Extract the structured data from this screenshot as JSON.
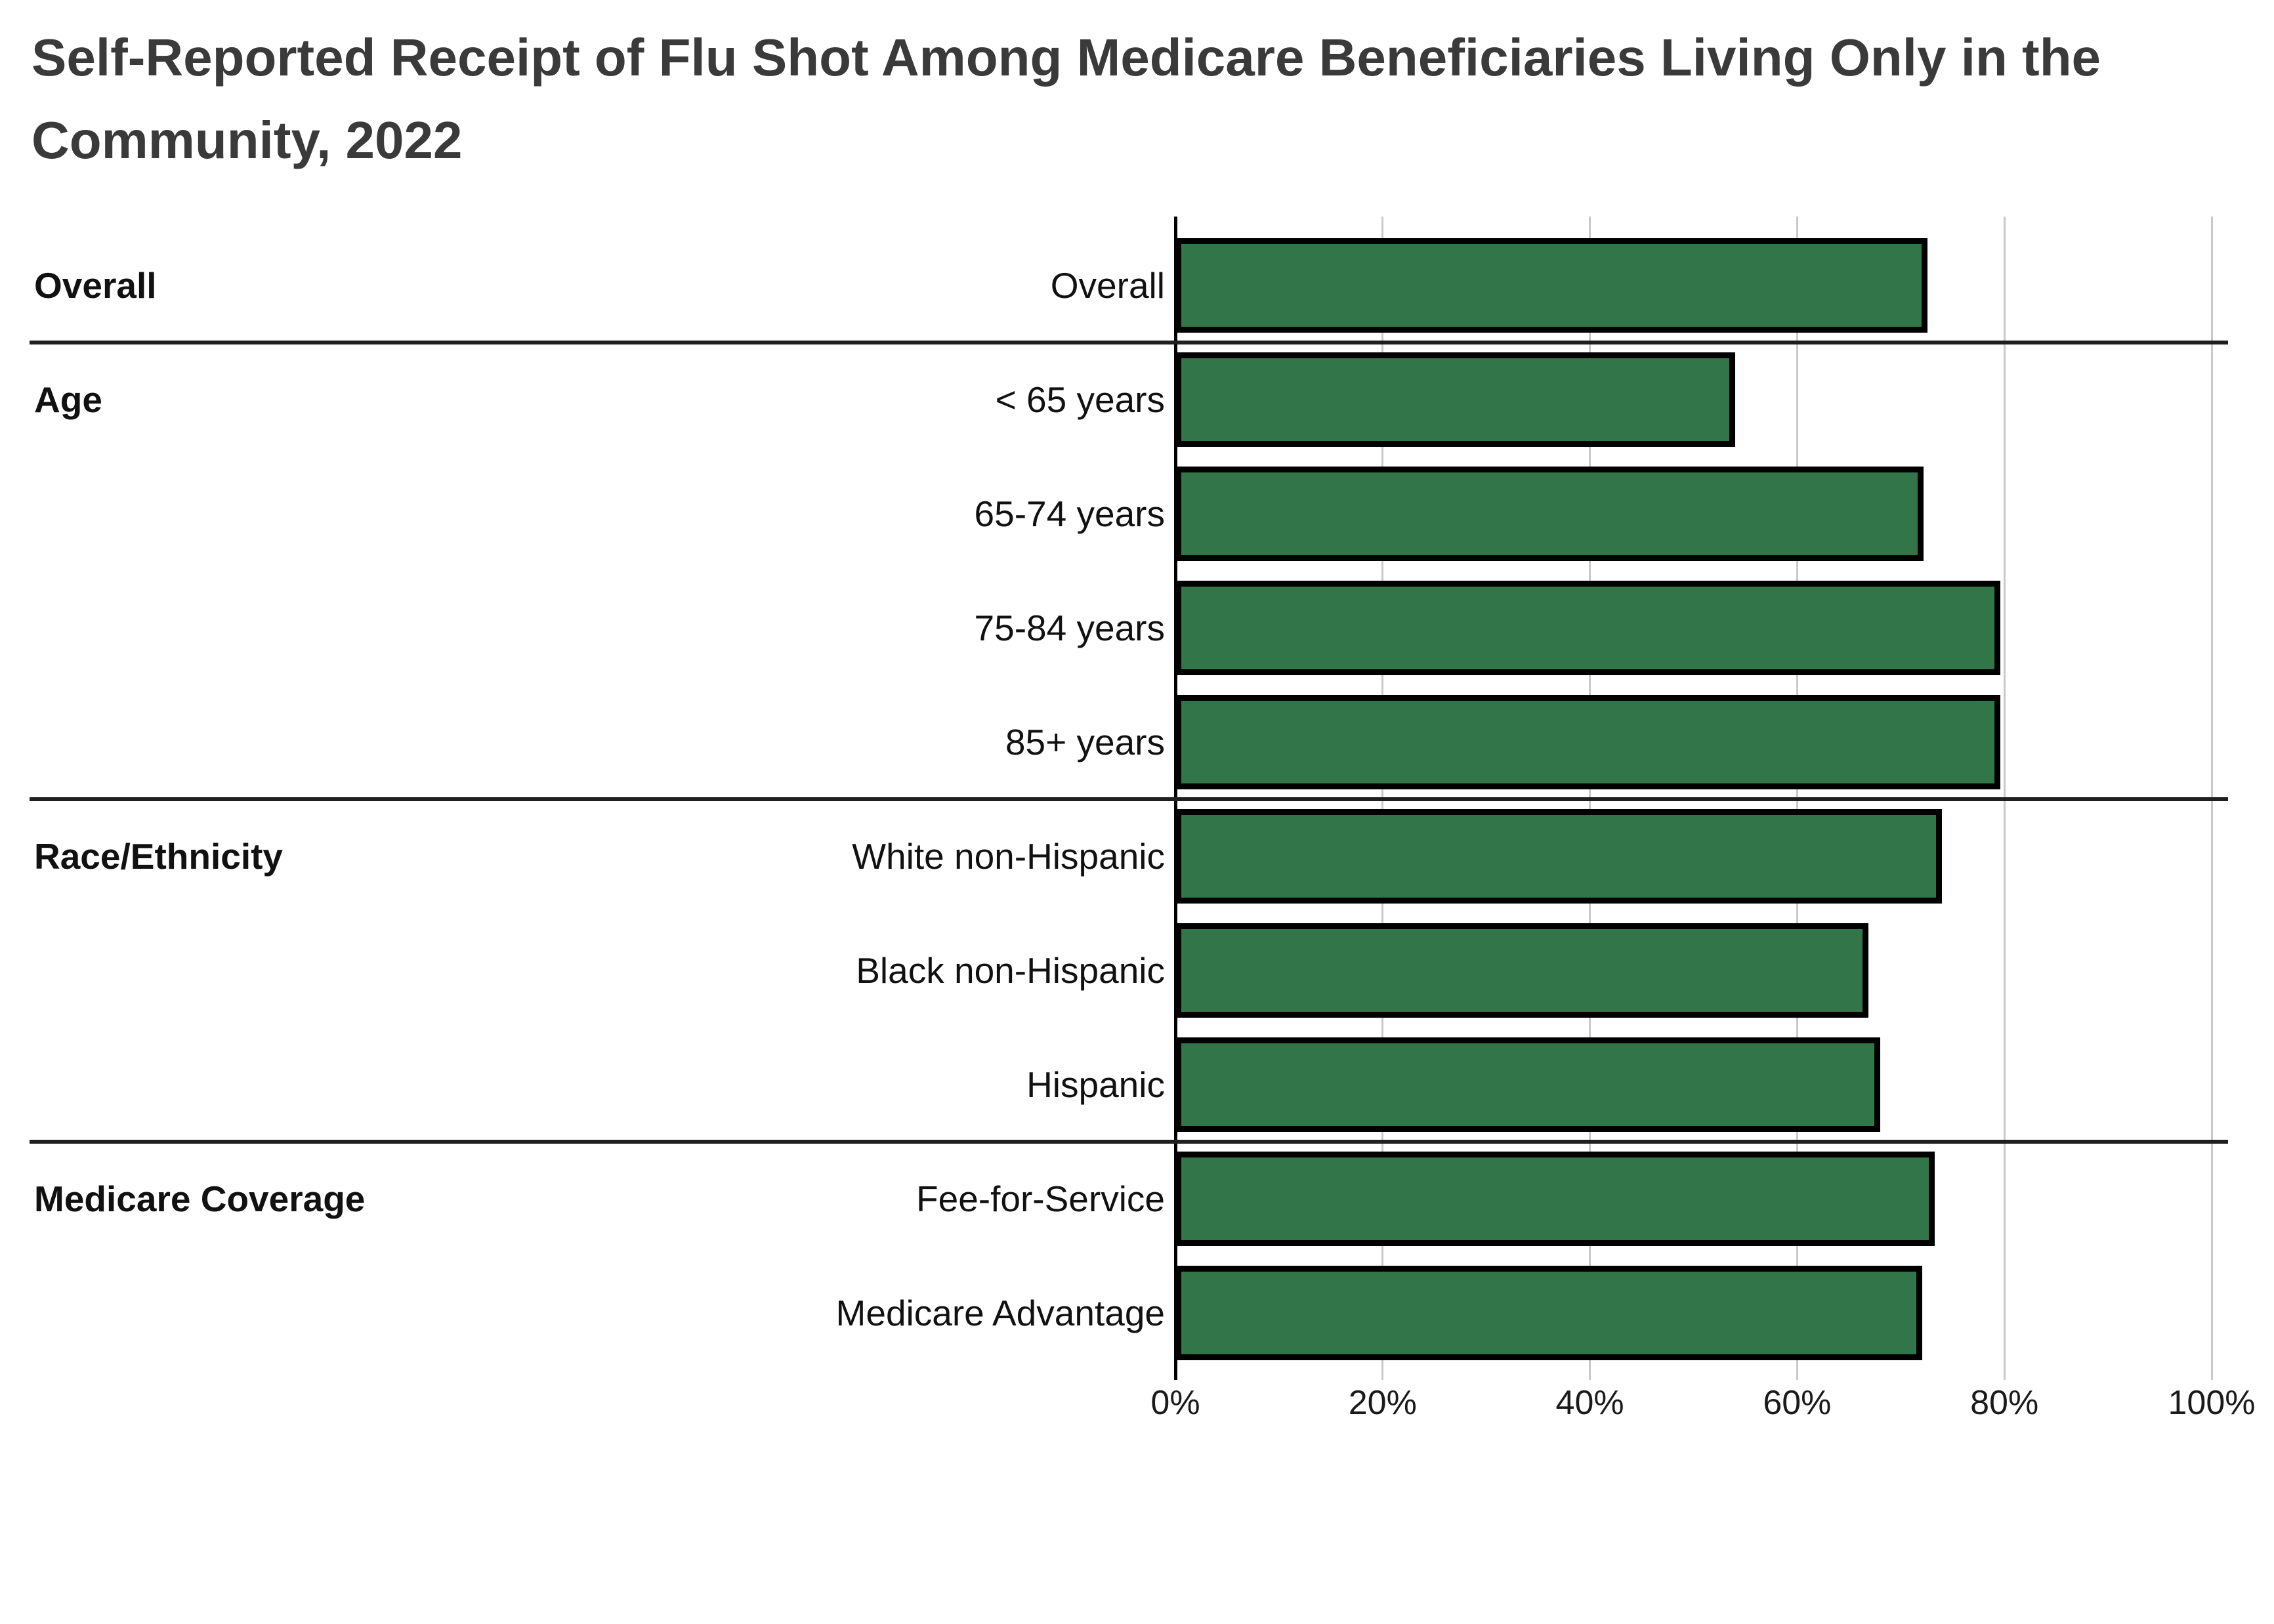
{
  "page": {
    "background_color": "#ffffff"
  },
  "title": {
    "line1": "Self-Reported Receipt of Flu Shot Among Medicare Beneficiaries Living Only in the",
    "line2": "Community, 2022",
    "text_color": "#3a3a3a"
  },
  "chart_data": {
    "type": "bar",
    "orientation": "horizontal",
    "title": "Self-Reported Receipt of Flu Shot Among Medicare Beneficiaries Living Only in the Community, 2022",
    "xlabel": "",
    "ylabel": "",
    "grid": true,
    "x_axis": {
      "min": 0,
      "max": 100,
      "unit": "%",
      "tick_values": [
        0,
        20,
        40,
        60,
        80,
        100
      ],
      "tick_labels": [
        "0%",
        "20%",
        "40%",
        "60%",
        "80%",
        "100%"
      ]
    },
    "bar_fill_color": "#317549",
    "bar_border_color": "#000000",
    "gridline_color": "#c9c9c9",
    "separator_color": "#1f1f1f",
    "groups": [
      {
        "label": "Overall",
        "rows": [
          {
            "category": "Overall",
            "value": 72.6
          }
        ]
      },
      {
        "label": "Age",
        "rows": [
          {
            "category": "< 65 years",
            "value": 54.0
          },
          {
            "category": "65-74 years",
            "value": 72.2
          },
          {
            "category": "75-84 years",
            "value": 79.6
          },
          {
            "category": "85+ years",
            "value": 79.6
          }
        ]
      },
      {
        "label": "Race/Ethnicity",
        "rows": [
          {
            "category": "White non-Hispanic",
            "value": 74.0
          },
          {
            "category": "Black non-Hispanic",
            "value": 66.9
          },
          {
            "category": "Hispanic",
            "value": 68.0
          }
        ]
      },
      {
        "label": "Medicare Coverage",
        "rows": [
          {
            "category": "Fee-for-Service",
            "value": 73.3
          },
          {
            "category": "Medicare Advantage",
            "value": 72.1
          }
        ]
      }
    ]
  }
}
